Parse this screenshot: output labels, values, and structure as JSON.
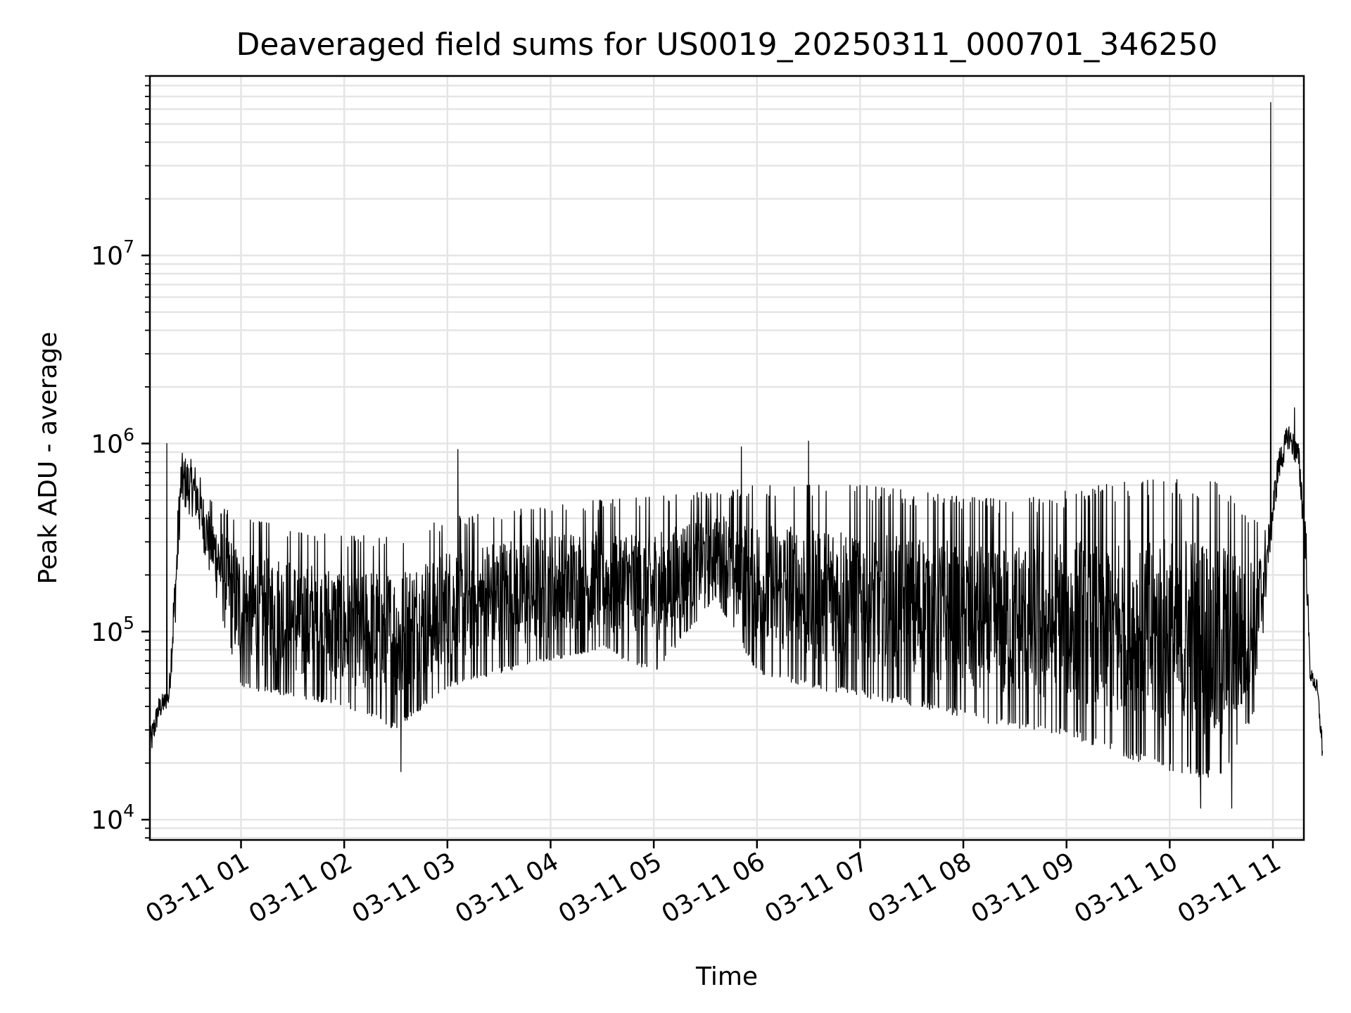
{
  "chart_data": {
    "type": "line",
    "title": "Deaveraged field sums for US0019_20250311_000701_346250",
    "xlabel": "Time",
    "ylabel": "Peak ADU - average",
    "yscale": "log",
    "ylim": [
      7800,
      90000000
    ],
    "xlim": [
      "03-11 00:07",
      "03-11 11:18"
    ],
    "grid": true,
    "line_color": "#000000",
    "grid_color": "#e5e5e5",
    "x_ticks": [
      {
        "t": "03-11 01",
        "h": 1
      },
      {
        "t": "03-11 02",
        "h": 2
      },
      {
        "t": "03-11 03",
        "h": 3
      },
      {
        "t": "03-11 04",
        "h": 4
      },
      {
        "t": "03-11 05",
        "h": 5
      },
      {
        "t": "03-11 06",
        "h": 6
      },
      {
        "t": "03-11 07",
        "h": 7
      },
      {
        "t": "03-11 08",
        "h": 8
      },
      {
        "t": "03-11 09",
        "h": 9
      },
      {
        "t": "03-11 10",
        "h": 10
      },
      {
        "t": "03-11 11",
        "h": 11
      }
    ],
    "y_ticks": [
      {
        "base": "10",
        "exp": "4",
        "v": 10000
      },
      {
        "base": "10",
        "exp": "5",
        "v": 100000
      },
      {
        "base": "10",
        "exp": "6",
        "v": 1000000
      },
      {
        "base": "10",
        "exp": "7",
        "v": 10000000
      }
    ],
    "envelope": [
      {
        "h": 0.117,
        "lo": 20000,
        "hi": 30000
      },
      {
        "h": 0.2,
        "lo": 33000,
        "hi": 45000
      },
      {
        "h": 0.3,
        "lo": 40000,
        "hi": 50000
      },
      {
        "h": 0.36,
        "lo": 100000,
        "hi": 250000
      },
      {
        "h": 0.42,
        "lo": 450000,
        "hi": 900000
      },
      {
        "h": 0.55,
        "lo": 400000,
        "hi": 800000
      },
      {
        "h": 0.7,
        "lo": 200000,
        "hi": 500000
      },
      {
        "h": 1.0,
        "lo": 50000,
        "hi": 400000
      },
      {
        "h": 2.0,
        "lo": 40000,
        "hi": 320000
      },
      {
        "h": 2.5,
        "lo": 30000,
        "hi": 330000
      },
      {
        "h": 3.0,
        "lo": 50000,
        "hi": 400000
      },
      {
        "h": 3.5,
        "lo": 60000,
        "hi": 450000
      },
      {
        "h": 4.0,
        "lo": 70000,
        "hi": 480000
      },
      {
        "h": 4.5,
        "lo": 80000,
        "hi": 500000
      },
      {
        "h": 5.0,
        "lo": 60000,
        "hi": 520000
      },
      {
        "h": 5.6,
        "lo": 150000,
        "hi": 560000
      },
      {
        "h": 6.0,
        "lo": 60000,
        "hi": 600000
      },
      {
        "h": 6.5,
        "lo": 50000,
        "hi": 600000
      },
      {
        "h": 7.0,
        "lo": 45000,
        "hi": 600000
      },
      {
        "h": 7.5,
        "lo": 40000,
        "hi": 560000
      },
      {
        "h": 8.0,
        "lo": 35000,
        "hi": 520000
      },
      {
        "h": 8.5,
        "lo": 30000,
        "hi": 500000
      },
      {
        "h": 9.0,
        "lo": 28000,
        "hi": 560000
      },
      {
        "h": 9.5,
        "lo": 22000,
        "hi": 620000
      },
      {
        "h": 10.0,
        "lo": 18000,
        "hi": 650000
      },
      {
        "h": 10.5,
        "lo": 16000,
        "hi": 620000
      },
      {
        "h": 10.85,
        "lo": 40000,
        "hi": 400000
      },
      {
        "h": 10.95,
        "lo": 200000,
        "hi": 350000
      },
      {
        "h": 11.05,
        "lo": 600000,
        "hi": 900000
      },
      {
        "h": 11.15,
        "lo": 950000,
        "hi": 1300000
      },
      {
        "h": 11.25,
        "lo": 700000,
        "hi": 1000000
      },
      {
        "h": 11.32,
        "lo": 200000,
        "hi": 400000
      },
      {
        "h": 11.36,
        "lo": 55000,
        "hi": 65000
      },
      {
        "h": 11.43,
        "lo": 45000,
        "hi": 55000
      },
      {
        "h": 11.48,
        "lo": 20000,
        "hi": 28000
      }
    ],
    "spikes": [
      {
        "h": 10.98,
        "value": 65000000
      },
      {
        "h": 11.21,
        "value": 1550000
      },
      {
        "h": 6.5,
        "value": 1030000
      },
      {
        "h": 5.85,
        "value": 960000
      },
      {
        "h": 3.1,
        "value": 930000
      },
      {
        "h": 0.28,
        "value": 1000000
      },
      {
        "h": 2.55,
        "value": 18000
      },
      {
        "h": 10.3,
        "value": 11500
      },
      {
        "h": 10.6,
        "value": 11500
      }
    ]
  }
}
